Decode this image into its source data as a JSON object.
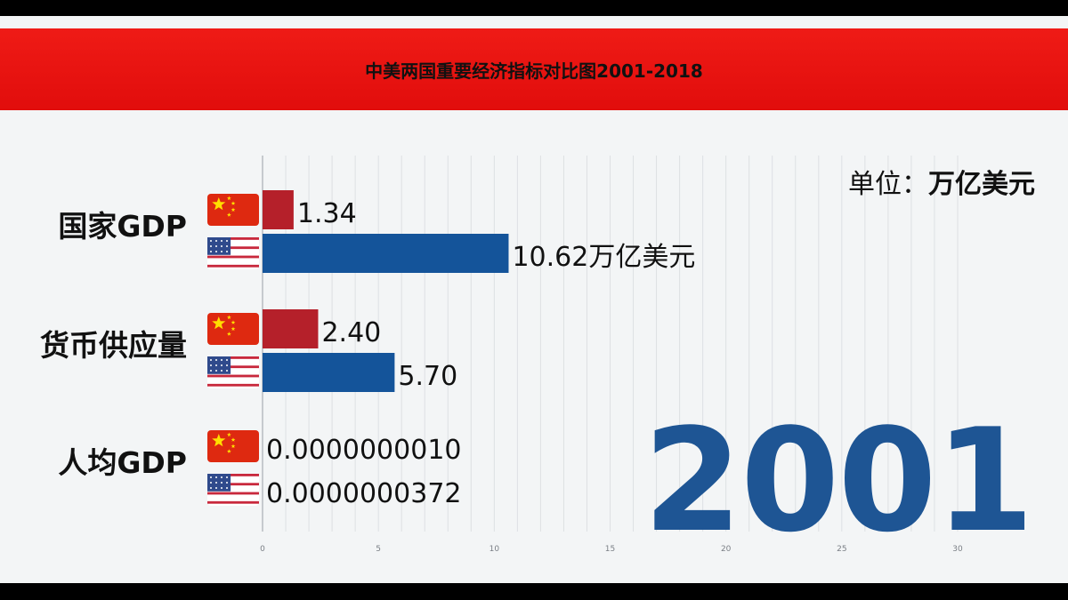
{
  "title": "中美两国重要经济指标对比图2001-2018",
  "unit_prefix": "单位：",
  "unit_value": "万亿美元",
  "year": "2001",
  "colors": {
    "china": "#b5202a",
    "usa": "#14549a",
    "banner": "#e60f0d",
    "year": "#1e5594",
    "background": "#f3f5f6"
  },
  "chart_data": {
    "type": "bar",
    "orientation": "horizontal",
    "categories": [
      "国家GDP",
      "货币供应量",
      "人均GDP"
    ],
    "series": [
      {
        "flag": "china-flag-icon",
        "values": [
          1.34,
          2.4,
          1e-09
        ],
        "labels": [
          "1.34",
          "2.40",
          "0.0000000010"
        ]
      },
      {
        "flag": "usa-flag-icon",
        "values": [
          10.62,
          5.7,
          3.72e-08
        ],
        "labels": [
          "10.62万亿美元",
          "5.70",
          "0.0000000372"
        ]
      }
    ],
    "x_ticks": [
      "0",
      "5",
      "10",
      "15",
      "20",
      "25",
      "30"
    ],
    "xlim": [
      0,
      30
    ],
    "grid": true
  }
}
